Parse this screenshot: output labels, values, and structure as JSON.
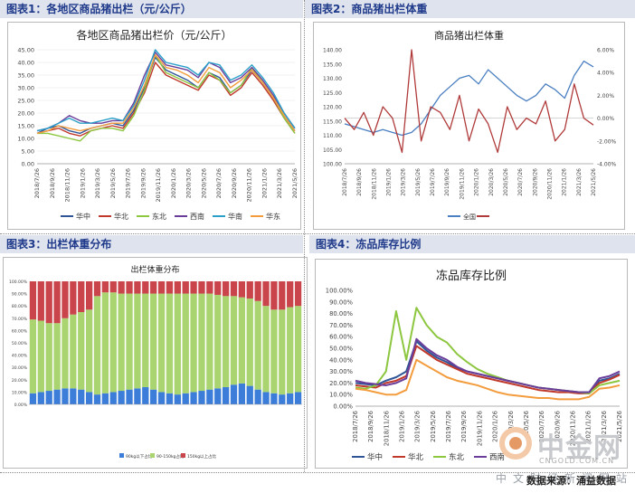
{
  "panels": [
    {
      "header": "图表1：各地区商品猪出栏（元/公斤）"
    },
    {
      "header": "图表2：商品猪出栏体重"
    },
    {
      "header": "图表3：出栏体重分布"
    },
    {
      "header": "图表4：冻品库存比例"
    }
  ],
  "footer": {
    "source": "数据来源：涌益数据",
    "watermark_cn": "中金网",
    "watermark_url": "CNGOLD.COM.CN",
    "watermark_line": "中文财经新闻网站"
  },
  "colors": {
    "header_bg": "#dfe3ee",
    "header_text": "#1f3a8a",
    "series": [
      "#2f5597",
      "#c0392b",
      "#8dc63f",
      "#6a3d9a",
      "#2aa0c9",
      "#f39c3d"
    ]
  },
  "chart_data": [
    {
      "type": "line",
      "title": "各地区商品猪出栏价（元/公斤）",
      "x_ticks": [
        "2018/7/26",
        "2018/9/26",
        "2018/11/26",
        "2019/1/26",
        "2019/3/26",
        "2019/5/26",
        "2019/7/26",
        "2019/9/26",
        "2019/11/26",
        "2020/1/26",
        "2020/3/26",
        "2020/5/26",
        "2020/7/26",
        "2020/9/26",
        "2020/11/26",
        "2021/1/26",
        "2021/3/26",
        "2021/5/26"
      ],
      "y_ticks": [
        "0.00",
        "5.00",
        "10.00",
        "15.00",
        "20.00",
        "25.00",
        "30.00",
        "35.00",
        "40.00",
        "45.00"
      ],
      "ylim": [
        0,
        45
      ],
      "legend": "bottom",
      "series": [
        {
          "name": "华中",
          "values": [
            12,
            14,
            15,
            13,
            12,
            14,
            15,
            16,
            15,
            21,
            30,
            42,
            37,
            35,
            33,
            30,
            36,
            34,
            28,
            31,
            37,
            32,
            26,
            19,
            13
          ]
        },
        {
          "name": "华北",
          "values": [
            12,
            13,
            14,
            12,
            11,
            13,
            14,
            15,
            14,
            20,
            28,
            40,
            35,
            33,
            31,
            29,
            35,
            33,
            27,
            30,
            36,
            31,
            25,
            18,
            12
          ]
        },
        {
          "name": "东北",
          "values": [
            12,
            12,
            11,
            10,
            9,
            13,
            14,
            14,
            13,
            19,
            29,
            43,
            36,
            34,
            32,
            30,
            36,
            33,
            28,
            31,
            38,
            32,
            26,
            18,
            12
          ]
        },
        {
          "name": "西南",
          "values": [
            13,
            14,
            16,
            19,
            17,
            16,
            16,
            17,
            17,
            24,
            35,
            44,
            39,
            38,
            37,
            34,
            40,
            38,
            32,
            34,
            38,
            33,
            27,
            20,
            14
          ]
        },
        {
          "name": "华南",
          "values": [
            13,
            14,
            16,
            18,
            16,
            16,
            17,
            18,
            17,
            23,
            33,
            45,
            40,
            39,
            38,
            35,
            40,
            39,
            33,
            35,
            39,
            34,
            28,
            20,
            14
          ]
        },
        {
          "name": "华东",
          "values": [
            12,
            13,
            15,
            14,
            13,
            14,
            15,
            16,
            16,
            22,
            31,
            43,
            38,
            37,
            35,
            32,
            38,
            36,
            30,
            33,
            37,
            32,
            26,
            19,
            13
          ]
        }
      ]
    },
    {
      "type": "line",
      "title": "商品猪出栏体重",
      "x_ticks": [
        "2018/7/26",
        "2018/9/26",
        "2018/11/26",
        "2019/1/26",
        "2019/3/26",
        "2019/5/26",
        "2019/7/26",
        "2019/9/26",
        "2019/11/26",
        "2020/1/26",
        "2020/3/26",
        "2020/5/26",
        "2020/7/26",
        "2020/9/26",
        "2020/11/26",
        "2021/1/26",
        "2021/3/26",
        "2021/5/26"
      ],
      "y_ticks": [
        "100.00",
        "105.00",
        "110.00",
        "115.00",
        "120.00",
        "125.00",
        "130.00",
        "135.00",
        "140.00"
      ],
      "y2_ticks": [
        "-4.00%",
        "-2.00%",
        "0.00%",
        "2.00%",
        "4.00%",
        "6.00%"
      ],
      "ylim": [
        100,
        140
      ],
      "y2lim": [
        -4,
        6
      ],
      "legend": "bottom",
      "series": [
        {
          "name": "全国",
          "axis": "left",
          "values": [
            114,
            113,
            112,
            111,
            112,
            111,
            110,
            111,
            114,
            119,
            124,
            127,
            130,
            131,
            128,
            133,
            130,
            127,
            124,
            122,
            124,
            128,
            126,
            123,
            131,
            136,
            134
          ]
        },
        {
          "name": "",
          "axis": "right",
          "values": [
            0,
            -1,
            0.5,
            -1.5,
            1,
            0,
            -3,
            6,
            -2,
            1,
            0.5,
            -1,
            2,
            -2,
            0.8,
            -0.5,
            -3,
            1,
            -1,
            0,
            -0.5,
            1.5,
            -2,
            -1,
            3,
            0,
            -0.6
          ]
        }
      ]
    },
    {
      "type": "bar",
      "title": "出栏体重分布",
      "stacked": true,
      "y_ticks": [
        "0.00%",
        "10.00%",
        "20.00%",
        "30.00%",
        "40.00%",
        "50.00%",
        "60.00%",
        "70.00%",
        "80.00%",
        "90.00%",
        "100.00%"
      ],
      "ylim": [
        0,
        100
      ],
      "legend": "bottom",
      "series": [
        {
          "name": "90kg以下占比",
          "values": [
            9,
            10,
            11,
            12,
            13,
            13,
            12,
            10,
            8,
            9,
            10,
            11,
            12,
            13,
            14,
            12,
            10,
            9,
            8,
            9,
            10,
            11,
            12,
            13,
            14,
            16,
            17,
            15,
            12,
            10,
            9,
            8,
            9,
            10
          ]
        },
        {
          "name": "90-150kg占比",
          "values": [
            60,
            58,
            55,
            54,
            57,
            60,
            63,
            67,
            80,
            82,
            81,
            79,
            78,
            77,
            76,
            78,
            80,
            81,
            82,
            81,
            80,
            79,
            78,
            76,
            74,
            72,
            70,
            71,
            72,
            70,
            68,
            69,
            70,
            70
          ]
        },
        {
          "name": "150kg以上占比",
          "values": [
            31,
            32,
            34,
            34,
            30,
            27,
            25,
            23,
            12,
            9,
            9,
            10,
            10,
            10,
            10,
            10,
            10,
            10,
            10,
            10,
            10,
            10,
            10,
            11,
            12,
            12,
            13,
            14,
            16,
            20,
            23,
            23,
            21,
            20
          ]
        }
      ]
    },
    {
      "type": "line",
      "title": "冻品库存比例",
      "x_ticks": [
        "2018/7/26",
        "2018/9/26",
        "2018/11/26",
        "2019/1/26",
        "2019/3/26",
        "2019/5/26",
        "2019/7/26",
        "2019/9/26",
        "2019/11/26",
        "2020/1/26",
        "2020/3/26",
        "2020/5/26",
        "2020/7/26",
        "2020/9/26",
        "2020/11/26",
        "2021/1/26",
        "2021/3/26",
        "2021/5/26"
      ],
      "y_ticks": [
        "0.00%",
        "10.00%",
        "20.00%",
        "30.00%",
        "40.00%",
        "50.00%",
        "60.00%",
        "70.00%",
        "80.00%",
        "90.00%",
        "100.00%"
      ],
      "ylim": [
        0,
        100
      ],
      "legend": "bottom",
      "series": [
        {
          "name": "华中",
          "values": [
            20,
            19,
            18,
            22,
            25,
            30,
            56,
            48,
            42,
            38,
            33,
            30,
            28,
            26,
            24,
            22,
            20,
            18,
            16,
            15,
            14,
            13,
            12,
            12,
            22,
            24,
            28
          ]
        },
        {
          "name": "华北",
          "values": [
            18,
            17,
            16,
            20,
            22,
            26,
            52,
            46,
            40,
            36,
            32,
            28,
            26,
            24,
            22,
            20,
            18,
            16,
            14,
            13,
            12,
            12,
            11,
            11,
            20,
            23,
            27
          ]
        },
        {
          "name": "东北",
          "values": [
            16,
            15,
            18,
            30,
            82,
            40,
            85,
            70,
            60,
            55,
            45,
            38,
            32,
            28,
            25,
            22,
            20,
            18,
            16,
            15,
            14,
            13,
            12,
            11,
            18,
            20,
            22
          ]
        },
        {
          "name": "西南",
          "values": [
            22,
            20,
            19,
            18,
            20,
            24,
            58,
            50,
            44,
            40,
            34,
            30,
            28,
            26,
            24,
            22,
            20,
            18,
            16,
            15,
            14,
            13,
            12,
            12,
            24,
            26,
            30
          ]
        },
        {
          "name": "",
          "values": [
            15,
            14,
            12,
            10,
            10,
            14,
            40,
            35,
            30,
            25,
            22,
            20,
            18,
            15,
            12,
            10,
            9,
            8,
            7,
            7,
            6,
            6,
            6,
            8,
            15,
            16,
            18
          ]
        }
      ]
    }
  ]
}
